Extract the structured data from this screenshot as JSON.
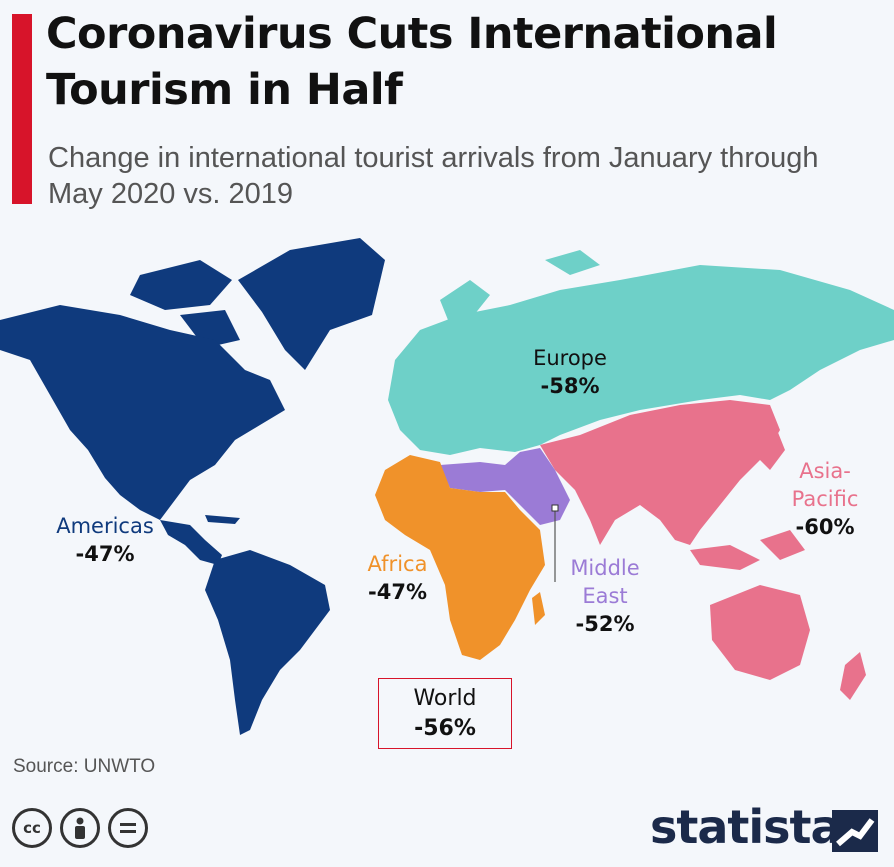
{
  "header": {
    "title": "Coronavirus Cuts International Tourism in Half",
    "subtitle": "Change in international tourist arrivals from January through May 2020 vs. 2019"
  },
  "regions": {
    "americas": {
      "name": "Americas",
      "value": "-47%",
      "color": "#0f3a7d"
    },
    "europe": {
      "name": "Europe",
      "value": "-58%",
      "color": "#6ed0c8"
    },
    "africa": {
      "name": "Africa",
      "value": "-47%",
      "color": "#f0922a"
    },
    "middle_east": {
      "name_line1": "Middle",
      "name_line2": "East",
      "value": "-52%",
      "color": "#9b7bd6"
    },
    "asia_pacific": {
      "name_line1": "Asia-",
      "name_line2": "Pacific",
      "value": "-60%",
      "color": "#e8728c"
    }
  },
  "world": {
    "name": "World",
    "value": "-56%",
    "border_color": "#d7142a"
  },
  "footer": {
    "source": "Source: UNWTO",
    "brand": "statista",
    "license_icons": [
      "cc-icon",
      "attribution-icon",
      "no-derivatives-icon"
    ]
  }
}
